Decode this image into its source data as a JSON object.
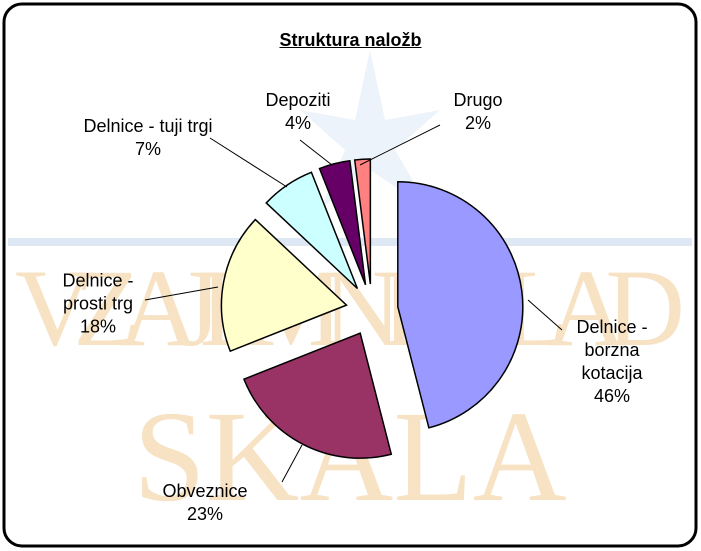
{
  "chart_data": {
    "type": "pie",
    "title": "Struktura naložb",
    "watermark": [
      "VZAJEMNI SKLAD",
      "SKALA"
    ],
    "categories": [
      "Delnice - borzna kotacija",
      "Obveznice",
      "Delnice - prosti trg",
      "Delnice - tuji trgi",
      "Depoziti",
      "Drugo"
    ],
    "values": [
      46,
      23,
      18,
      7,
      4,
      2
    ],
    "value_labels": [
      "46%",
      "23%",
      "18%",
      "7%",
      "4%",
      "2%"
    ],
    "colors": [
      "#9999ff",
      "#993366",
      "#ffffcc",
      "#ccffff",
      "#660066",
      "#ff8080"
    ]
  }
}
